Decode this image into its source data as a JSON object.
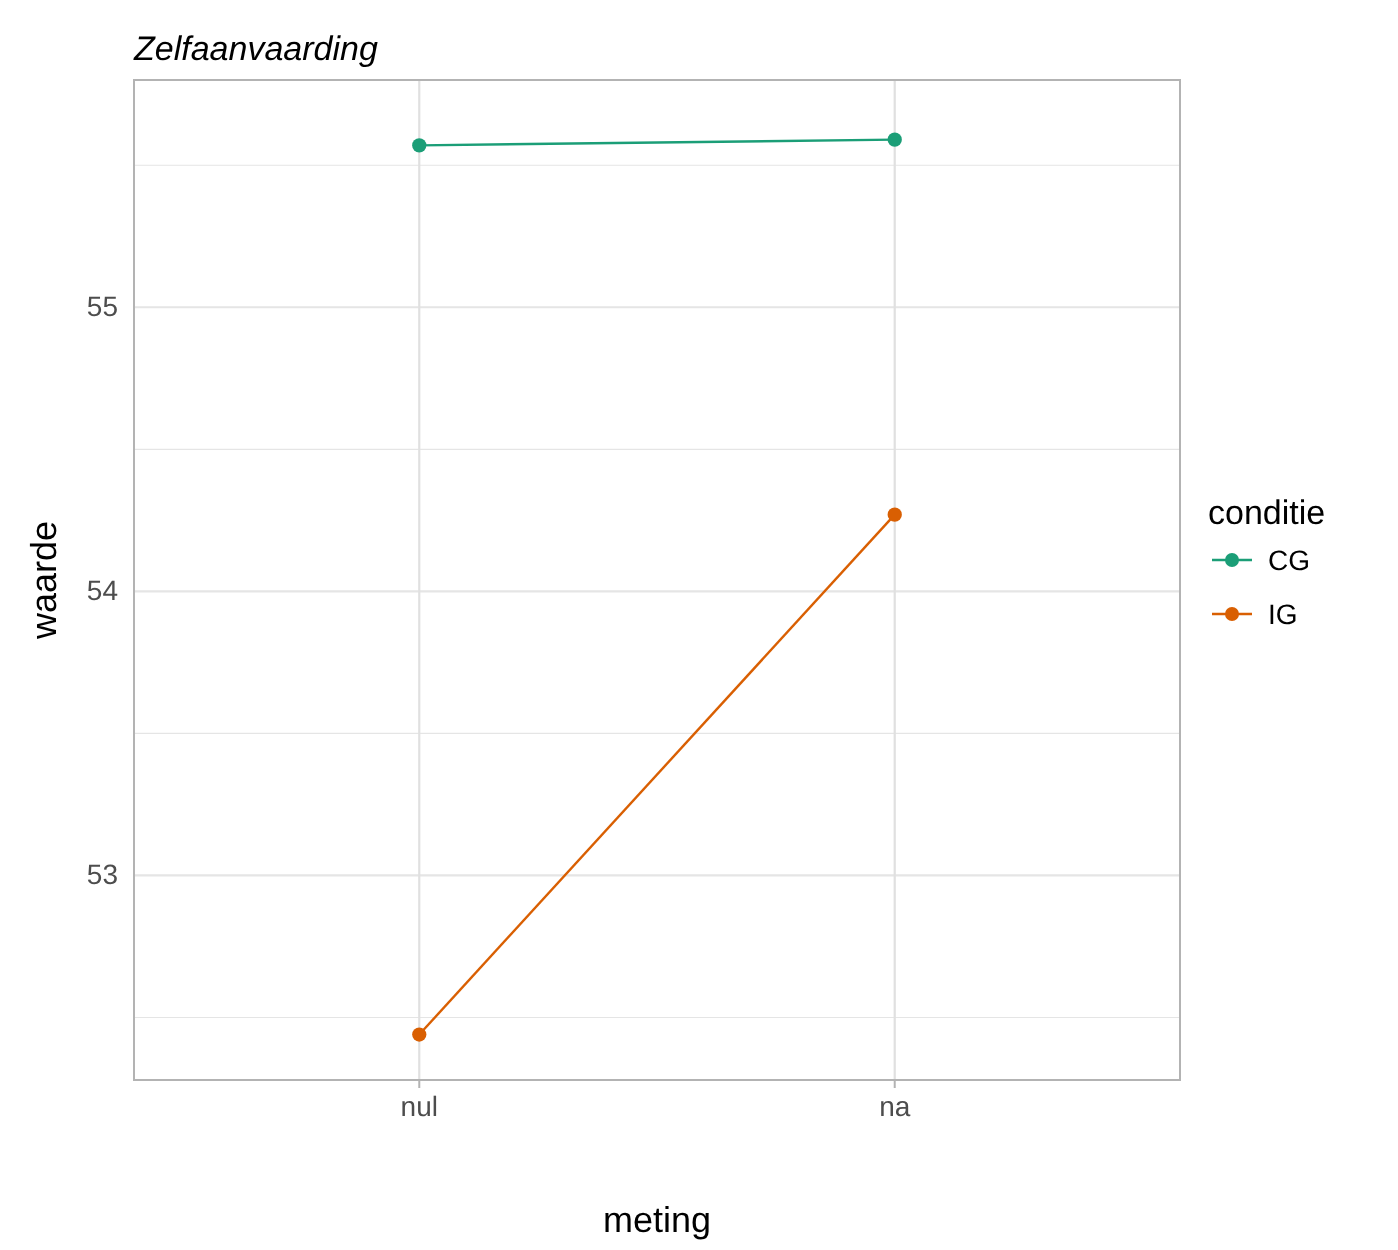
{
  "chart_data": {
    "type": "line",
    "title": "Zelfaanvaarding",
    "xlabel": "meting",
    "ylabel": "waarde",
    "legend_title": "conditie",
    "categories": [
      "nul",
      "na"
    ],
    "series": [
      {
        "name": "CG",
        "color": "#1b9e77",
        "values": [
          55.57,
          55.59
        ]
      },
      {
        "name": "IG",
        "color": "#d95f02",
        "values": [
          52.44,
          54.27
        ]
      }
    ],
    "ylim": [
      52.28,
      55.8
    ],
    "yticks": [
      {
        "value": 52.5,
        "label": null
      },
      53,
      {
        "value": 53.5,
        "label": null
      },
      54,
      {
        "value": 54.5,
        "label": null
      },
      55,
      {
        "value": 55.5,
        "label": null
      }
    ],
    "grid": true,
    "legend": "right",
    "marker": "circle",
    "line_style": "solid"
  }
}
